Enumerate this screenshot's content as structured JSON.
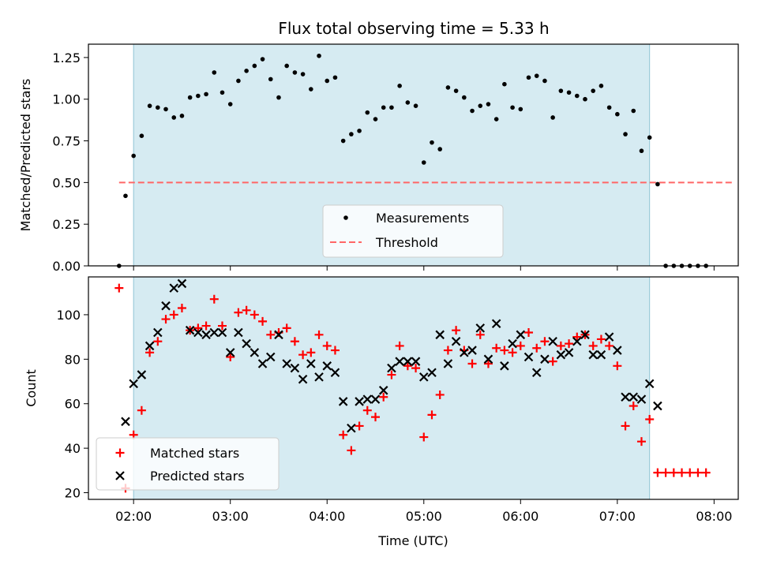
{
  "chart_data": {
    "type": "scatter",
    "title": "Flux total observing time = 5.33 h",
    "xlabel": "Time (UTC)",
    "x_ticks": [
      "02:00",
      "03:00",
      "04:00",
      "05:00",
      "06:00",
      "07:00",
      "08:00"
    ],
    "x_range": [
      "01:32",
      "08:15"
    ],
    "shaded_interval": [
      "02:00",
      "07:20"
    ],
    "shade_color": "#add8e6",
    "panels": [
      {
        "ylabel": "Matched/Predicted stars",
        "ylim": [
          0,
          1.33
        ],
        "y_ticks": [
          "0.00",
          "0.25",
          "0.50",
          "0.75",
          "1.00",
          "1.25"
        ],
        "legend_position": "lower-center",
        "threshold": {
          "name": "Threshold",
          "value": 0.5,
          "x_range": [
            "01:51",
            "08:12"
          ],
          "color": "#ff6666"
        },
        "series": [
          {
            "name": "Measurements",
            "marker": "dot",
            "color": "#000000",
            "points": [
              [
                "01:51",
                0.0
              ],
              [
                "01:55",
                0.42
              ],
              [
                "02:00",
                0.66
              ],
              [
                "02:05",
                0.78
              ],
              [
                "02:10",
                0.96
              ],
              [
                "02:15",
                0.95
              ],
              [
                "02:20",
                0.94
              ],
              [
                "02:25",
                0.89
              ],
              [
                "02:30",
                0.9
              ],
              [
                "02:35",
                1.01
              ],
              [
                "02:40",
                1.02
              ],
              [
                "02:45",
                1.03
              ],
              [
                "02:50",
                1.16
              ],
              [
                "02:55",
                1.04
              ],
              [
                "03:00",
                0.97
              ],
              [
                "03:05",
                1.11
              ],
              [
                "03:10",
                1.17
              ],
              [
                "03:15",
                1.2
              ],
              [
                "03:20",
                1.24
              ],
              [
                "03:25",
                1.12
              ],
              [
                "03:30",
                1.01
              ],
              [
                "03:35",
                1.2
              ],
              [
                "03:40",
                1.16
              ],
              [
                "03:45",
                1.15
              ],
              [
                "03:50",
                1.06
              ],
              [
                "03:55",
                1.26
              ],
              [
                "04:00",
                1.11
              ],
              [
                "04:05",
                1.13
              ],
              [
                "04:10",
                0.75
              ],
              [
                "04:15",
                0.79
              ],
              [
                "04:20",
                0.81
              ],
              [
                "04:25",
                0.92
              ],
              [
                "04:30",
                0.88
              ],
              [
                "04:35",
                0.95
              ],
              [
                "04:40",
                0.95
              ],
              [
                "04:45",
                1.08
              ],
              [
                "04:50",
                0.98
              ],
              [
                "04:55",
                0.96
              ],
              [
                "05:00",
                0.62
              ],
              [
                "05:05",
                0.74
              ],
              [
                "05:10",
                0.7
              ],
              [
                "05:15",
                1.07
              ],
              [
                "05:20",
                1.05
              ],
              [
                "05:25",
                1.01
              ],
              [
                "05:30",
                0.93
              ],
              [
                "05:35",
                0.96
              ],
              [
                "05:40",
                0.97
              ],
              [
                "05:45",
                0.88
              ],
              [
                "05:50",
                1.09
              ],
              [
                "05:55",
                0.95
              ],
              [
                "06:00",
                0.94
              ],
              [
                "06:05",
                1.13
              ],
              [
                "06:10",
                1.14
              ],
              [
                "06:15",
                1.11
              ],
              [
                "06:20",
                0.89
              ],
              [
                "06:25",
                1.05
              ],
              [
                "06:30",
                1.04
              ],
              [
                "06:35",
                1.02
              ],
              [
                "06:40",
                1.0
              ],
              [
                "06:45",
                1.05
              ],
              [
                "06:50",
                1.08
              ],
              [
                "06:55",
                0.95
              ],
              [
                "07:00",
                0.91
              ],
              [
                "07:05",
                0.79
              ],
              [
                "07:10",
                0.93
              ],
              [
                "07:15",
                0.69
              ],
              [
                "07:20",
                0.77
              ],
              [
                "07:25",
                0.49
              ],
              [
                "07:30",
                0.0
              ],
              [
                "07:35",
                0.0
              ],
              [
                "07:40",
                0.0
              ],
              [
                "07:45",
                0.0
              ],
              [
                "07:50",
                0.0
              ],
              [
                "07:55",
                0.0
              ]
            ]
          }
        ]
      },
      {
        "ylabel": "Count",
        "ylim": [
          17,
          117
        ],
        "y_ticks": [
          "20",
          "40",
          "60",
          "80",
          "100"
        ],
        "legend_position": "lower-left",
        "series": [
          {
            "name": "Matched stars",
            "marker": "plus",
            "color": "#ff0000",
            "points": [
              [
                "01:51",
                112
              ],
              [
                "01:55",
                22
              ],
              [
                "02:00",
                46
              ],
              [
                "02:05",
                57
              ],
              [
                "02:10",
                83
              ],
              [
                "02:15",
                88
              ],
              [
                "02:20",
                98
              ],
              [
                "02:25",
                100
              ],
              [
                "02:30",
                103
              ],
              [
                "02:35",
                93
              ],
              [
                "02:40",
                94
              ],
              [
                "02:45",
                95
              ],
              [
                "02:50",
                107
              ],
              [
                "02:55",
                95
              ],
              [
                "03:00",
                81
              ],
              [
                "03:05",
                101
              ],
              [
                "03:10",
                102
              ],
              [
                "03:15",
                100
              ],
              [
                "03:20",
                97
              ],
              [
                "03:25",
                91
              ],
              [
                "03:30",
                92
              ],
              [
                "03:35",
                94
              ],
              [
                "03:40",
                88
              ],
              [
                "03:45",
                82
              ],
              [
                "03:50",
                83
              ],
              [
                "03:55",
                91
              ],
              [
                "04:00",
                86
              ],
              [
                "04:05",
                84
              ],
              [
                "04:10",
                46
              ],
              [
                "04:15",
                39
              ],
              [
                "04:20",
                50
              ],
              [
                "04:25",
                57
              ],
              [
                "04:30",
                54
              ],
              [
                "04:35",
                63
              ],
              [
                "04:40",
                73
              ],
              [
                "04:45",
                86
              ],
              [
                "04:50",
                77
              ],
              [
                "04:55",
                76
              ],
              [
                "05:00",
                45
              ],
              [
                "05:05",
                55
              ],
              [
                "05:10",
                64
              ],
              [
                "05:15",
                84
              ],
              [
                "05:20",
                93
              ],
              [
                "05:25",
                84
              ],
              [
                "05:30",
                78
              ],
              [
                "05:35",
                91
              ],
              [
                "05:40",
                78
              ],
              [
                "05:45",
                85
              ],
              [
                "05:50",
                84
              ],
              [
                "05:55",
                83
              ],
              [
                "06:00",
                86
              ],
              [
                "06:05",
                92
              ],
              [
                "06:10",
                85
              ],
              [
                "06:15",
                88
              ],
              [
                "06:20",
                79
              ],
              [
                "06:25",
                86
              ],
              [
                "06:30",
                87
              ],
              [
                "06:35",
                90
              ],
              [
                "06:40",
                91
              ],
              [
                "06:45",
                86
              ],
              [
                "06:50",
                89
              ],
              [
                "06:55",
                86
              ],
              [
                "07:00",
                77
              ],
              [
                "07:05",
                50
              ],
              [
                "07:10",
                59
              ],
              [
                "07:15",
                43
              ],
              [
                "07:20",
                53
              ],
              [
                "07:25",
                29
              ],
              [
                "07:30",
                29
              ],
              [
                "07:35",
                29
              ],
              [
                "07:40",
                29
              ],
              [
                "07:45",
                29
              ],
              [
                "07:50",
                29
              ],
              [
                "07:55",
                29
              ]
            ]
          },
          {
            "name": "Predicted stars",
            "marker": "cross",
            "color": "#000000",
            "points": [
              [
                "01:55",
                52
              ],
              [
                "02:00",
                69
              ],
              [
                "02:05",
                73
              ],
              [
                "02:10",
                86
              ],
              [
                "02:15",
                92
              ],
              [
                "02:20",
                104
              ],
              [
                "02:25",
                112
              ],
              [
                "02:30",
                114
              ],
              [
                "02:35",
                93
              ],
              [
                "02:40",
                92
              ],
              [
                "02:45",
                91
              ],
              [
                "02:50",
                92
              ],
              [
                "02:55",
                92
              ],
              [
                "03:00",
                83
              ],
              [
                "03:05",
                92
              ],
              [
                "03:10",
                87
              ],
              [
                "03:15",
                83
              ],
              [
                "03:20",
                78
              ],
              [
                "03:25",
                81
              ],
              [
                "03:30",
                91
              ],
              [
                "03:35",
                78
              ],
              [
                "03:40",
                76
              ],
              [
                "03:45",
                71
              ],
              [
                "03:50",
                78
              ],
              [
                "03:55",
                72
              ],
              [
                "04:00",
                77
              ],
              [
                "04:05",
                74
              ],
              [
                "04:10",
                61
              ],
              [
                "04:15",
                49
              ],
              [
                "04:20",
                61
              ],
              [
                "04:25",
                62
              ],
              [
                "04:30",
                62
              ],
              [
                "04:35",
                66
              ],
              [
                "04:40",
                76
              ],
              [
                "04:45",
                79
              ],
              [
                "04:50",
                79
              ],
              [
                "04:55",
                79
              ],
              [
                "05:00",
                72
              ],
              [
                "05:05",
                74
              ],
              [
                "05:10",
                91
              ],
              [
                "05:15",
                78
              ],
              [
                "05:20",
                88
              ],
              [
                "05:25",
                83
              ],
              [
                "05:30",
                84
              ],
              [
                "05:35",
                94
              ],
              [
                "05:40",
                80
              ],
              [
                "05:45",
                96
              ],
              [
                "05:50",
                77
              ],
              [
                "05:55",
                87
              ],
              [
                "06:00",
                91
              ],
              [
                "06:05",
                81
              ],
              [
                "06:10",
                74
              ],
              [
                "06:15",
                80
              ],
              [
                "06:20",
                88
              ],
              [
                "06:25",
                82
              ],
              [
                "06:30",
                83
              ],
              [
                "06:35",
                88
              ],
              [
                "06:40",
                91
              ],
              [
                "06:45",
                82
              ],
              [
                "06:50",
                82
              ],
              [
                "06:55",
                90
              ],
              [
                "07:00",
                84
              ],
              [
                "07:05",
                63
              ],
              [
                "07:10",
                63
              ],
              [
                "07:15",
                62
              ],
              [
                "07:20",
                69
              ],
              [
                "07:25",
                59
              ]
            ]
          }
        ]
      }
    ]
  }
}
